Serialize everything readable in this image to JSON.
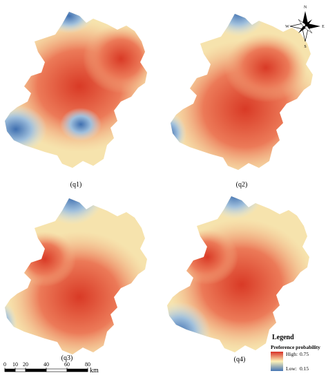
{
  "panels": [
    {
      "label": "(q1)"
    },
    {
      "label": "(q2)"
    },
    {
      "label": "(q3)"
    },
    {
      "label": "(q4)"
    }
  ],
  "compass": {
    "n": "N",
    "e": "E",
    "s": "S",
    "w": "W"
  },
  "legend": {
    "title": "Legend",
    "subtitle": "Preference probability",
    "high_label": "High:",
    "high_value": 0.75,
    "low_label": "Low:",
    "low_value": 0.15
  },
  "scale_bar": {
    "ticks": [
      0,
      10,
      20,
      40,
      60,
      80
    ],
    "unit": "km"
  }
}
